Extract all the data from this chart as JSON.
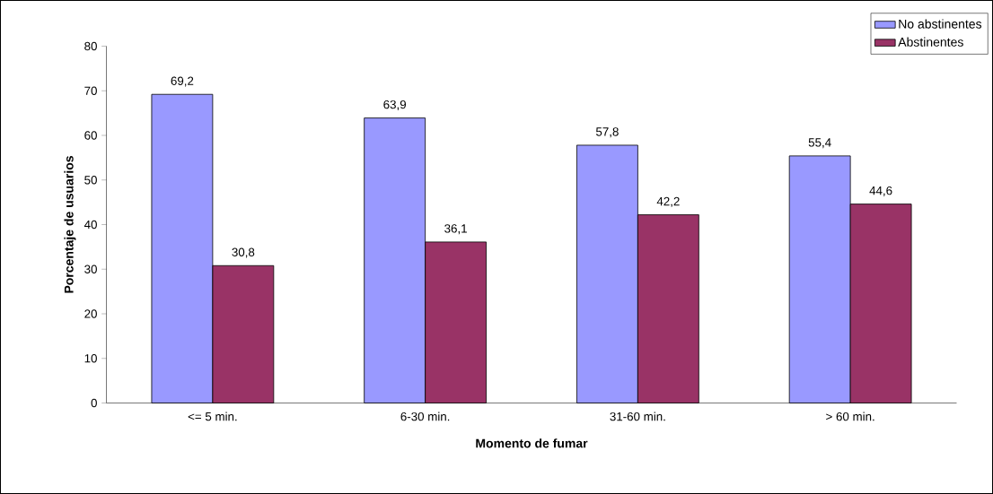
{
  "chart_data": {
    "type": "bar",
    "xlabel": "Momento de fumar",
    "ylabel": "Porcentaje de usuarios",
    "categories": [
      "<= 5 min.",
      "6-30 min.",
      "31-60 min.",
      "> 60 min."
    ],
    "series": [
      {
        "name": "No abstinentes",
        "color": "#9999ff",
        "values": [
          69.2,
          63.9,
          57.8,
          55.4
        ],
        "value_labels": [
          "69,2",
          "63,9",
          "57,8",
          "55,4"
        ]
      },
      {
        "name": "Abstinentes",
        "color": "#993366",
        "values": [
          30.8,
          36.1,
          42.2,
          44.6
        ],
        "value_labels": [
          "30,8",
          "36,1",
          "42,2",
          "44,6"
        ]
      }
    ],
    "ylim": [
      0,
      80
    ],
    "yticks": [
      0,
      10,
      20,
      30,
      40,
      50,
      60,
      70,
      80
    ],
    "grid": false,
    "legend": "top right"
  }
}
